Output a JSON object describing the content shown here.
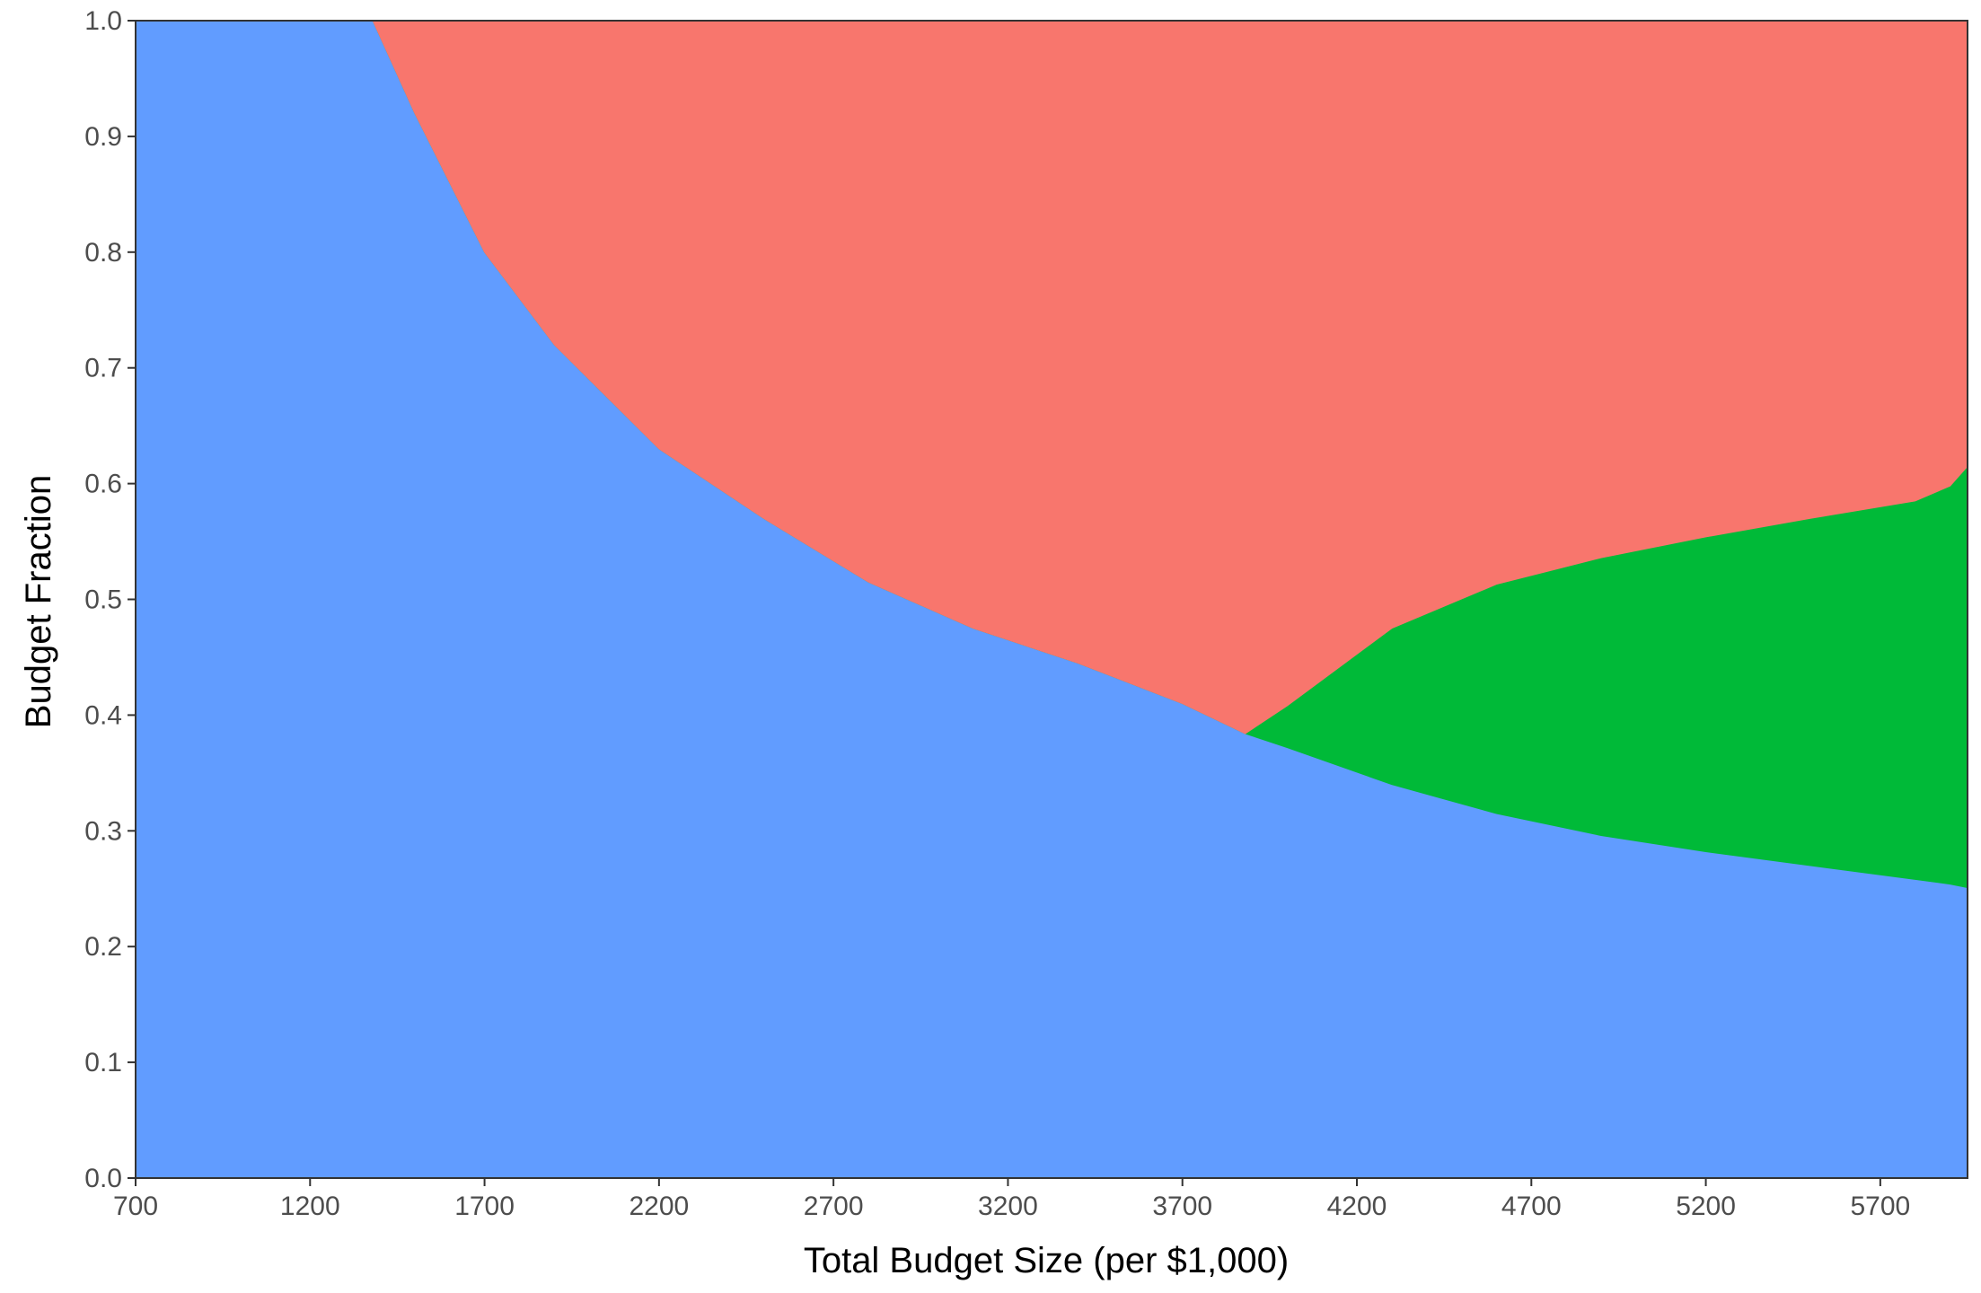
{
  "chart_data": {
    "type": "area",
    "stacked": true,
    "title": "",
    "xlabel": "Total Budget Size (per $1,000)",
    "ylabel": "Budget Fraction",
    "xlim": [
      700,
      5950
    ],
    "ylim": [
      0,
      1
    ],
    "x_ticks": [
      700,
      1200,
      1700,
      2200,
      2700,
      3200,
      3700,
      4200,
      4700,
      5200,
      5700
    ],
    "y_ticks": [
      "0.0",
      "0.1",
      "0.2",
      "0.3",
      "0.4",
      "0.5",
      "0.6",
      "0.7",
      "0.8",
      "0.9",
      "1.0"
    ],
    "grid": false,
    "legend": "none",
    "colors": {
      "blue": "#619CFF",
      "green": "#00BA38",
      "red": "#F8766D"
    },
    "x": [
      700,
      1000,
      1380,
      1500,
      1700,
      1900,
      2200,
      2500,
      2800,
      3100,
      3400,
      3700,
      3880,
      4000,
      4300,
      4600,
      4900,
      5200,
      5500,
      5800,
      5900,
      5950
    ],
    "series": [
      {
        "color": "#619CFF",
        "values": [
          1.0,
          1.0,
          1.0,
          0.92,
          0.8,
          0.72,
          0.63,
          0.57,
          0.515,
          0.475,
          0.445,
          0.41,
          0.384,
          0.372,
          0.34,
          0.315,
          0.296,
          0.282,
          0.27,
          0.258,
          0.254,
          0.251
        ]
      },
      {
        "color": "#00BA38",
        "values": [
          0,
          0,
          0,
          0,
          0,
          0,
          0,
          0,
          0,
          0,
          0,
          0,
          0,
          0.036,
          0.135,
          0.198,
          0.24,
          0.272,
          0.3,
          0.327,
          0.344,
          0.364
        ]
      },
      {
        "color": "#F8766D",
        "values": [
          0,
          0,
          0,
          0.08,
          0.2,
          0.28,
          0.37,
          0.43,
          0.485,
          0.525,
          0.555,
          0.59,
          0.616,
          0.592,
          0.525,
          0.487,
          0.464,
          0.446,
          0.43,
          0.415,
          0.402,
          0.385
        ]
      }
    ]
  }
}
